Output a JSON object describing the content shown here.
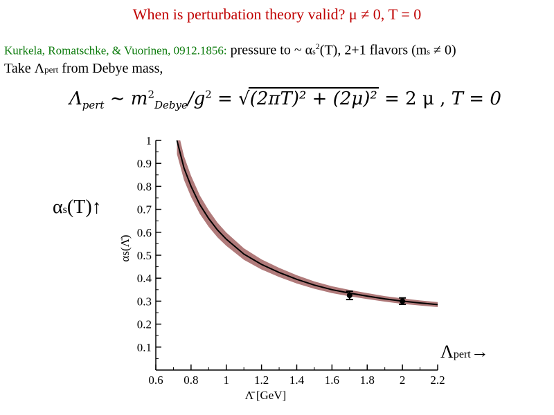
{
  "slide": {
    "title": "When is perturbation theory valid? μ ≠ 0, T = 0",
    "authors": "Kurkela, Romatschke, & Vuorinen, 0912.1856:",
    "pressure_text": "pressure to ~ α",
    "pressure_sub": "s",
    "pressure_sup": "2",
    "pressure_rest": "(T), 2+1 flavors (m",
    "pressure_sub2": "s",
    "pressure_end": "≠ 0)",
    "take_text": "Take Λ",
    "take_sub": "pert",
    "take_rest": " from Debye mass,",
    "formula": {
      "lhs": "Λ",
      "lhs_sub": "pert",
      "sim": " ∼ m",
      "m_sup": "2",
      "m_sub": "Debye",
      "div": "/g",
      "g_sup": "2",
      "eq1": " = ",
      "sqrt_content": "(2πT)² + (2μ)²",
      "eq2": " = 2 μ ,  ",
      "tail": "T = 0"
    },
    "alpha_label": "α",
    "alpha_sub": "s",
    "alpha_rest": "(T)↑",
    "lambda_label": "Λ",
    "lambda_sub": "pert",
    "lambda_arrow": "→"
  },
  "chart_data": {
    "type": "line",
    "title": "",
    "xlabel": "Λ̄ [GeV]",
    "ylabel": "αs(Λ̄)",
    "xlim": [
      0.6,
      2.2
    ],
    "ylim": [
      0,
      1
    ],
    "xticks": [
      "0.6",
      "0.8",
      "1",
      "1.2",
      "1.4",
      "1.6",
      "1.8",
      "2",
      "2.2"
    ],
    "yticks": [
      "0.1",
      "0.2",
      "0.3",
      "0.4",
      "0.5",
      "0.6",
      "0.7",
      "0.8",
      "0.9",
      "1"
    ],
    "series": [
      {
        "x": [
          0.72,
          0.76,
          0.8,
          0.85,
          0.9,
          0.95,
          1.0,
          1.1,
          1.2,
          1.3,
          1.4,
          1.5,
          1.6,
          1.7,
          1.8,
          1.9,
          2.0,
          2.1,
          2.2
        ],
        "y": [
          1.0,
          0.88,
          0.8,
          0.72,
          0.66,
          0.61,
          0.57,
          0.505,
          0.46,
          0.425,
          0.395,
          0.37,
          0.35,
          0.335,
          0.322,
          0.31,
          0.3,
          0.292,
          0.285
        ],
        "band_halfwidth": [
          0.06,
          0.052,
          0.046,
          0.04,
          0.036,
          0.032,
          0.029,
          0.025,
          0.022,
          0.02,
          0.018,
          0.016,
          0.015,
          0.014,
          0.013,
          0.012,
          0.012,
          0.011,
          0.011
        ]
      }
    ],
    "points": [
      {
        "x": 1.7,
        "y": 0.325,
        "err": 0.018
      },
      {
        "x": 2.0,
        "y": 0.3,
        "err": 0.014
      }
    ],
    "colors": {
      "band": "#b07a7a",
      "line": "#000000"
    }
  }
}
